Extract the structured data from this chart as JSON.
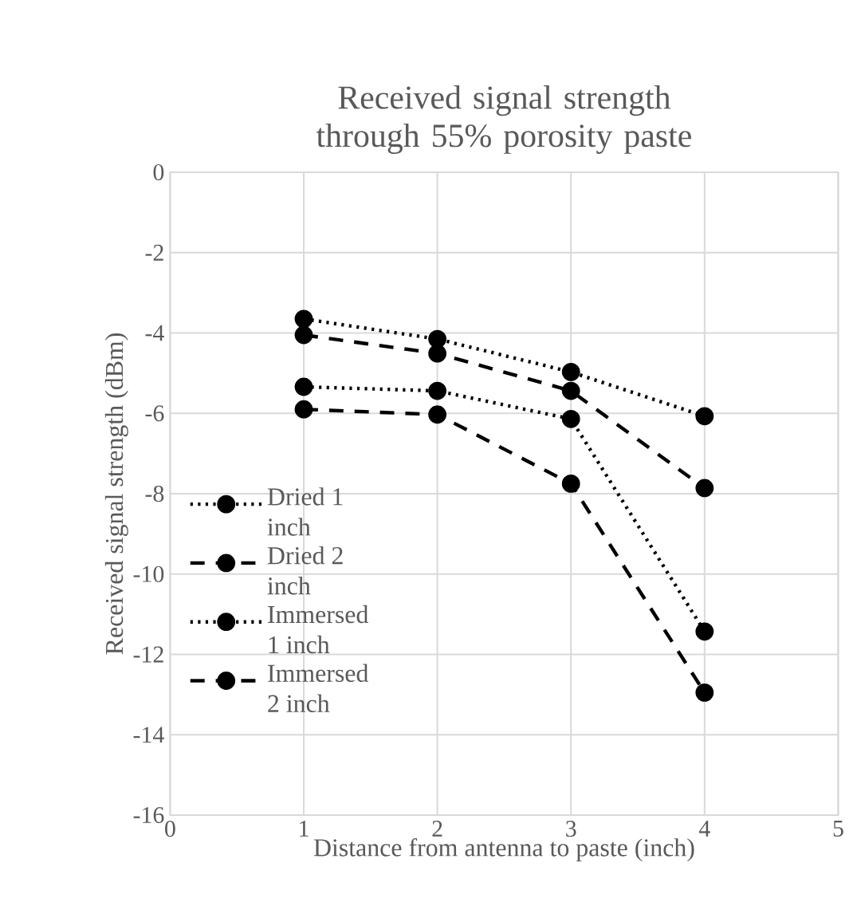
{
  "chart_data": {
    "type": "line",
    "title": "Received signal strength through 55% porosity paste",
    "xlabel": "Distance from antenna to paste (inch)",
    "ylabel": "Received signal strength (dBm)",
    "x": [
      1,
      2,
      3,
      4
    ],
    "series": [
      {
        "name": "Dried 1 inch",
        "color": "#000000",
        "line_style": "dotted",
        "values": [
          -3.65,
          -4.15,
          -4.97,
          -6.07
        ]
      },
      {
        "name": "Dried 2 inch",
        "color": "#000000",
        "line_style": "dashed",
        "values": [
          -4.05,
          -4.51,
          -5.44,
          -7.86
        ]
      },
      {
        "name": "Immersed 1 inch",
        "color": "#000000",
        "line_style": "dotted",
        "values": [
          -5.34,
          -5.44,
          -6.14,
          -11.43
        ]
      },
      {
        "name": "Immersed 2 inch",
        "color": "#000000",
        "line_style": "dashed",
        "values": [
          -5.9,
          -6.03,
          -7.75,
          -12.95
        ]
      }
    ],
    "xlim": [
      0,
      5
    ],
    "xticks": [
      0,
      1,
      2,
      3,
      4,
      5
    ],
    "ylim": [
      -16,
      0
    ],
    "yticks": [
      -16,
      -14,
      -12,
      -10,
      -8,
      -6,
      -4,
      -2,
      0
    ],
    "grid": true,
    "legend": "left",
    "marker": "circle"
  }
}
